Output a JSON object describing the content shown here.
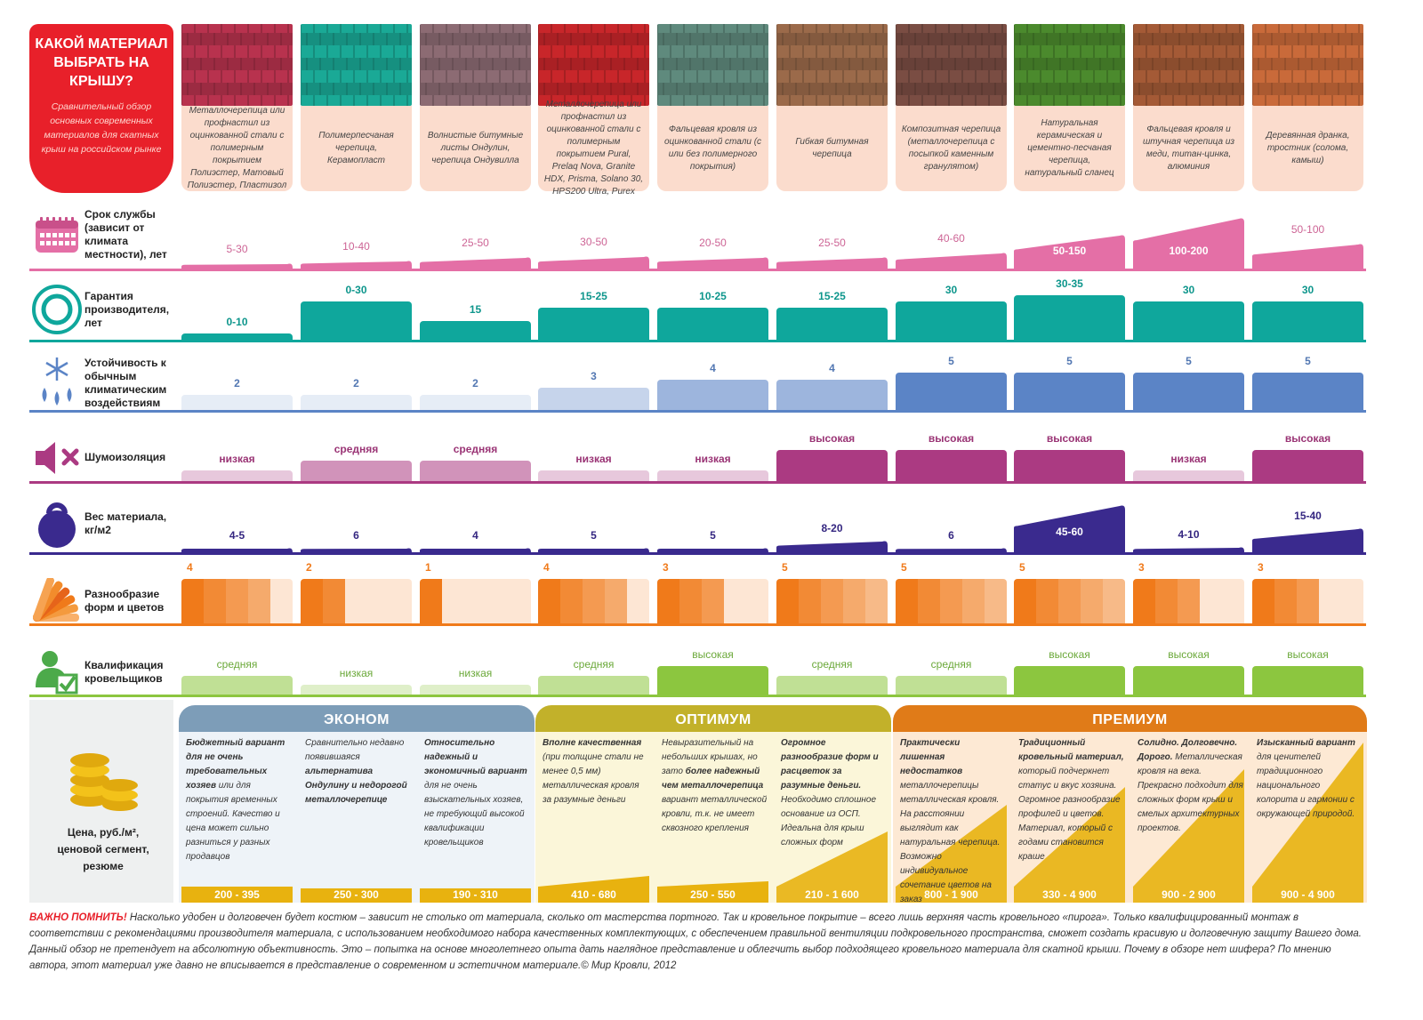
{
  "header": {
    "title": "КАКОЙ МАТЕРИАЛ ВЫБРАТЬ НА КРЫШУ?",
    "subtitle": "Сравнительный обзор основных современных материалов для скатных крыш на российском рынке"
  },
  "materials": [
    {
      "desc": "Металлочерепица или профнастил из оцинкованной стали с полимерным покрытием Полиэстер, Матовый Полиэстер, Пластизол",
      "img_color": "#b8324e"
    },
    {
      "desc": "Полимерпесчаная черепица, Керамопласт",
      "img_color": "#1aa996"
    },
    {
      "desc": "Волнистые битумные листы Ондулин, черепица Ондувилла",
      "img_color": "#8c6b73"
    },
    {
      "desc": "Металлочерепица или профнастил из оцинкованной стали с полимерным покрытием Pural, Prelaq Nova, Granite HDX, Prisma, Solano 30, HPS200 Ultra, Purex",
      "img_color": "#c8262a"
    },
    {
      "desc": "Фальцевая кровля из оцинкованной стали (с или без полимерного покрытия)",
      "img_color": "#5f8a7d"
    },
    {
      "desc": "Гибкая битумная черепица",
      "img_color": "#9b6a4a"
    },
    {
      "desc": "Композитная черепица (металлочерепица с посыпкой каменным гранулятом)",
      "img_color": "#7a4d43"
    },
    {
      "desc": "Натуральная керамическая и цементно-песчаная черепица, натуральный сланец",
      "img_color": "#4b8a2d"
    },
    {
      "desc": "Фальцевая кровля и штучная черепица из меди, титан-цинка, алюминия",
      "img_color": "#a45a36"
    },
    {
      "desc": "Деревянная дранка, тростник (солома, камыш)",
      "img_color": "#c96a3a"
    }
  ],
  "chart_data": [
    {
      "type": "bar",
      "title": "Срок службы (зависит от климата местности), лет",
      "color": "#e46fa6",
      "labels": [
        "5-30",
        "10-40",
        "25-50",
        "30-50",
        "20-50",
        "25-50",
        "40-60",
        "50-150",
        "100-200",
        "50-100"
      ],
      "values": [
        17.5,
        25,
        37.5,
        40,
        35,
        37.5,
        50,
        100,
        150,
        75
      ],
      "ylim": [
        0,
        150
      ]
    },
    {
      "type": "bar",
      "title": "Гарантия производителя, лет",
      "color": "#0fa79c",
      "labels": [
        "0-10",
        "0-30",
        "15",
        "15-25",
        "10-25",
        "15-25",
        "30",
        "30-35",
        "30",
        "30"
      ],
      "values": [
        5,
        30,
        15,
        25,
        25,
        25,
        30,
        35,
        30,
        30
      ],
      "ylim": [
        0,
        35
      ]
    },
    {
      "type": "bar",
      "title": "Устойчивость к обычным климатическим воздействиям",
      "color": "#5b84c6",
      "labels": [
        "2",
        "2",
        "2",
        "3",
        "4",
        "4",
        "5",
        "5",
        "5",
        "5"
      ],
      "values": [
        2,
        2,
        2,
        3,
        4,
        4,
        5,
        5,
        5,
        5
      ],
      "ylim": [
        0,
        5
      ]
    },
    {
      "type": "bar",
      "title": "Шумоизоляция",
      "color": "#ab3a82",
      "labels": [
        "низкая",
        "средняя",
        "средняя",
        "низкая",
        "низкая",
        "высокая",
        "высокая",
        "высокая",
        "низкая",
        "высокая"
      ],
      "values": [
        1,
        2,
        2,
        1,
        1,
        3,
        3,
        3,
        1,
        3
      ],
      "ylim": [
        0,
        3
      ]
    },
    {
      "type": "bar",
      "title": "Вес материала, кг/м2",
      "color": "#3a2a8e",
      "labels": [
        "4-5",
        "6",
        "4",
        "5",
        "5",
        "8-20",
        "6",
        "45-60",
        "4-10",
        "15-40"
      ],
      "values": [
        4.5,
        6,
        4,
        5,
        5,
        14,
        6,
        52.5,
        7,
        27.5
      ],
      "ylim": [
        0,
        60
      ]
    },
    {
      "type": "bar",
      "title": "Разнообразие форм и цветов",
      "color": "#f07a1a",
      "labels": [
        "4",
        "2",
        "1",
        "4",
        "3",
        "5",
        "5",
        "5",
        "3",
        "3"
      ],
      "values": [
        4,
        2,
        1,
        4,
        3,
        5,
        5,
        5,
        3,
        3
      ],
      "ylim": [
        0,
        5
      ]
    },
    {
      "type": "bar",
      "title": "Квалификация кровельщиков",
      "color": "#8cc63f",
      "labels": [
        "средняя",
        "низкая",
        "низкая",
        "средняя",
        "высокая",
        "средняя",
        "средняя",
        "высокая",
        "высокая",
        "высокая"
      ],
      "values": [
        2,
        1,
        1,
        2,
        3,
        2,
        2,
        3,
        3,
        3
      ],
      "ylim": [
        0,
        3
      ]
    }
  ],
  "price": {
    "label": "Цена, руб./м², ценовой сегмент, резюме",
    "segments": [
      {
        "name": "ЭКОНОМ",
        "color": "#7d9db8",
        "bg": "#eef3f8"
      },
      {
        "name": "ОПТИМУМ",
        "color": "#c2b12a",
        "bg": "#fbf6d9"
      },
      {
        "name": "ПРЕМИУМ",
        "color": "#e07b18",
        "bg": "#fde9d4"
      }
    ],
    "items": [
      {
        "price": "200 - 395",
        "bold": "Бюджетный вариант для не очень требовательных хозяев",
        "rest": " или для покрытия временных строений. Качество и цена может сильно разниться у разных продавцов"
      },
      {
        "price": "250 - 300",
        "bold": "",
        "rest": "Сравнительно недавно появившаяся ",
        "bold2": "альтернатива Ондулину и недорогой металлочерепице",
        "rest2": ""
      },
      {
        "price": "190 - 310",
        "bold": "Относительно надежный и экономичный вариант",
        "rest": " для не очень взыскательных хозяев, не требующий высокой квалификации кровельщиков"
      },
      {
        "price": "410 - 680",
        "bold": "Вполне качественная",
        "rest": " (при толщине стали не менее 0,5 мм) металлическая кровля за разумные деньги"
      },
      {
        "price": "250 - 550",
        "bold": "",
        "rest": "Невыразительный на небольших крышах, но зато ",
        "bold2": "более надежный чем металлочерепица",
        "rest2": " вариант металлической кровли, т.к. не имеет сквозного крепления"
      },
      {
        "price": "210 - 1 600",
        "bold": "Огромное разнообразие форм и расцветок за разумные деньги.",
        "rest": " Необходимо сплошное основание из ОСП. Идеальна для крыш сложных форм"
      },
      {
        "price": "800 - 1 900",
        "bold": "Практически лишенная недостатков",
        "rest": " металлочерепицы металлическая кровля. На расстоянии выглядит как натуральная черепица. Возможно индивидуальное сочетание цветов на заказ"
      },
      {
        "price": "330 - 4 900",
        "bold": "Традиционный кровельный материал,",
        "rest": " который подчеркнет статус и вкус хозяина. Огромное разнообразие профилей и цветов. Материал, который с годами становится краше"
      },
      {
        "price": "900 - 2 900",
        "bold": "Солидно. Долговечно. Дорого.",
        "rest": " Металлическая кровля на века. Прекрасно подходит для сложных форм крыш и смелых архитектурных проектов."
      },
      {
        "price": "900 - 4 900",
        "bold": "Изысканный вариант",
        "rest": " для ценителей традиционного национального колорита и гармонии с окружающей природой."
      }
    ]
  },
  "note": {
    "highlight": "ВАЖНО ПОМНИТЬ!",
    "text1": " Насколько удобен и долговечен будет костюм – зависит не столько от материала, сколько от мастерства портного. Так и кровельное покрытие – всего лишь верхняя часть кровельного «пирога». Только квалифицированный монтаж в соответствии с рекомендациями производителя материала, с использованием необходимого набора качественных комплектующих, с обеспечением правильной вентиляции подкровельного пространства, сможет создать красивую и долговечную защиту Вашего дома.",
    "text2": "Данный обзор не претендует на абсолютную объективность. Это – попытка на основе многолетнего опыта дать наглядное представление и облегчить выбор подходящего кровельного материала для скатной крыши. Почему в обзоре нет шифера? По мнению автора, этот материал уже давно не вписывается в представление о современном и эстетичном материале.© Мир Кровли, 2012"
  }
}
